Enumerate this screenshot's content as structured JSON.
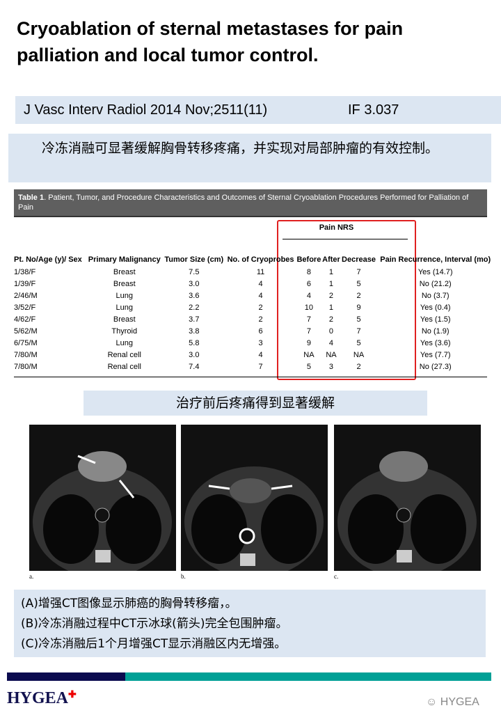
{
  "title": "Cryoablation of sternal metastases for pain palliation and local tumor control.",
  "citation": "J Vasc Interv Radiol 2014 Nov;2511(11)",
  "impact_factor": "IF 3.037",
  "summary": "冷冻消融可显著缓解胸骨转移疼痛，并实现对局部肿瘤的有效控制。",
  "table": {
    "caption_bold": "Table 1",
    "caption": ". Patient, Tumor, and Procedure Characteristics and Outcomes of Sternal Cryoablation Procedures Performed for Palliation of Pain",
    "group_header": "Pain NRS",
    "headers": [
      "Pt. No/Age (y)/ Sex",
      "Primary Malignancy",
      "Tumor Size (cm)",
      "No. of Cryoprobes",
      "Before",
      "After",
      "Decrease",
      "Pain Recurrence, Interval (mo)"
    ],
    "rows": [
      [
        "1/38/F",
        "Breast",
        "7.5",
        "11",
        "8",
        "1",
        "7",
        "Yes (14.7)"
      ],
      [
        "1/39/F",
        "Breast",
        "3.0",
        "4",
        "6",
        "1",
        "5",
        "No (21.2)"
      ],
      [
        "2/46/M",
        "Lung",
        "3.6",
        "4",
        "4",
        "2",
        "2",
        "No (3.7)"
      ],
      [
        "3/52/F",
        "Lung",
        "2.2",
        "2",
        "10",
        "1",
        "9",
        "Yes (0.4)"
      ],
      [
        "4/62/F",
        "Breast",
        "3.7",
        "2",
        "7",
        "2",
        "5",
        "Yes (1.5)"
      ],
      [
        "5/62/M",
        "Thyroid",
        "3.8",
        "6",
        "7",
        "0",
        "7",
        "No (1.9)"
      ],
      [
        "6/75/M",
        "Lung",
        "5.8",
        "3",
        "9",
        "4",
        "5",
        "Yes (3.6)"
      ],
      [
        "7/80/M",
        "Renal cell",
        "3.0",
        "4",
        "NA",
        "NA",
        "NA",
        "Yes (7.7)"
      ],
      [
        "7/80/M",
        "Renal cell",
        "7.4",
        "7",
        "5",
        "3",
        "2",
        "No (27.3)"
      ]
    ]
  },
  "images_caption": "治疗前后疼痛得到显著缓解",
  "image_labels": [
    "a.",
    "b.",
    "c."
  ],
  "notes": [
    "(A)增强CT图像显示肺癌的胸骨转移瘤，。",
    "(B)冷冻消融过程中CT示冰球(箭头)完全包围肿瘤。",
    "(C)冷冻消融后1个月增强CT显示消融区内无增强。"
  ],
  "logo": "HYGEA",
  "watermark": "HYGEA",
  "colors": {
    "panel": "#dce6f2",
    "highlight": "#e02020",
    "navy": "#0b0b4f",
    "teal": "#00a096"
  }
}
